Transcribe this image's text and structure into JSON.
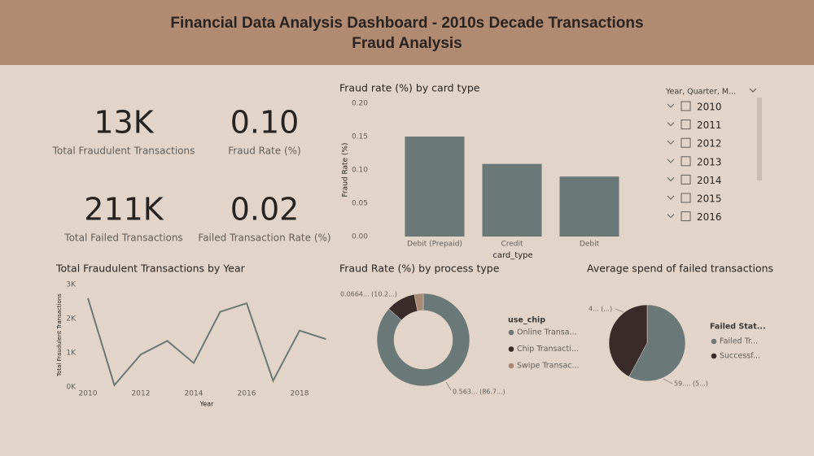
{
  "header": {
    "title": "Financial Data Analysis Dashboard - 2010s Decade Transactions",
    "subtitle": "Fraud Analysis"
  },
  "kpis": [
    {
      "value": "13K",
      "label": "Total Fraudulent Transactions"
    },
    {
      "value": "0.10",
      "label": "Fraud Rate (%)"
    },
    {
      "value": "211K",
      "label": "Total Failed Transactions"
    },
    {
      "value": "0.02",
      "label": "Failed Transaction Rate (%)"
    }
  ],
  "slicer": {
    "title": "Year, Quarter, M...",
    "items": [
      "2010",
      "2011",
      "2012",
      "2013",
      "2014",
      "2015",
      "2016"
    ]
  },
  "chart_data": [
    {
      "type": "bar",
      "title": "Fraud rate (%) by card type",
      "x_label": "card_type",
      "y_label": "Fraud Rate (%)",
      "categories": [
        "Debit (Prepaid)",
        "Credit",
        "Debit"
      ],
      "values": [
        0.15,
        0.109,
        0.09
      ],
      "color": "#6b7878",
      "ylim": [
        0,
        0.2
      ],
      "yticks": [
        {
          "value": 0,
          "label": "0.00"
        },
        {
          "value": 0.05,
          "label": "0.05"
        },
        {
          "value": 0.1,
          "label": "0.10"
        },
        {
          "value": 0.15,
          "label": "0.15"
        },
        {
          "value": 0.2,
          "label": "0.20"
        }
      ]
    },
    {
      "type": "line",
      "title": "Total Fraudulent Transactions by Year",
      "x_label": "Year",
      "y_label": "Total Fraudulent Transactions",
      "x": [
        2010,
        2011,
        2012,
        2013,
        2014,
        2015,
        2016,
        2017,
        2018,
        2019
      ],
      "values": [
        2600,
        50,
        950,
        1350,
        700,
        2200,
        2450,
        180,
        1650,
        1400
      ],
      "color": "#6b7878",
      "xlim": [
        2010,
        2019
      ],
      "xticks": [
        2010,
        2012,
        2014,
        2016,
        2018
      ],
      "ylim": [
        0,
        3000
      ],
      "yticks": [
        {
          "value": 0,
          "label": "0K"
        },
        {
          "value": 1000,
          "label": "1K"
        },
        {
          "value": 2000,
          "label": "2K"
        },
        {
          "value": 3000,
          "label": "3K"
        }
      ]
    },
    {
      "type": "donut",
      "title": "Fraud Rate (%) by process type",
      "legend_title": "use_chip",
      "categories": [
        "Online Transa...",
        "Chip Transacti...",
        "Swipe Transac..."
      ],
      "values": [
        0.563,
        0.0664,
        0.0203
      ],
      "value_labels": [
        "0.563... (86.7...)",
        "0.0664... (10.2...)",
        null
      ],
      "colors": [
        "#6b7878",
        "#3a2b2b",
        "#a88a74"
      ]
    },
    {
      "type": "pie",
      "title": "Average spend of failed transactions",
      "legend_title": "Failed Stat...",
      "categories": [
        "Failed Tr...",
        "Successf..."
      ],
      "values": [
        59,
        43
      ],
      "value_labels": [
        "59.... (5...)",
        "4... (...)"
      ],
      "colors": [
        "#6b7878",
        "#3a2b2b"
      ]
    }
  ]
}
